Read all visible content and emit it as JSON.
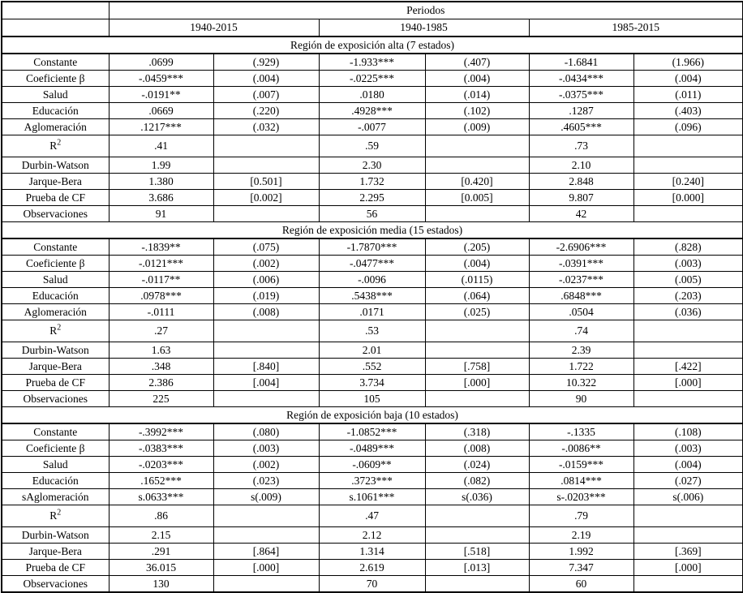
{
  "table": {
    "periods_label": "Periodos",
    "periods": [
      "1940-2015",
      "1940-1985",
      "1985-2015"
    ],
    "sections": [
      {
        "title": "Región de exposición alta (7 estados)",
        "rows": [
          {
            "label": "Constante",
            "cells": [
              ".0699",
              "(.929)",
              "-1.933***",
              "(.407)",
              "-1.6841",
              "(1.966)"
            ]
          },
          {
            "label": "Coeficiente β",
            "cells": [
              "-.0459***",
              "(.004)",
              "-.0225***",
              "(.004)",
              "-.0434***",
              "(.004)"
            ]
          },
          {
            "label": "Salud",
            "cells": [
              "-.0191**",
              "(.007)",
              ".0180",
              "(.014)",
              "-.0375***",
              "(.011)"
            ]
          },
          {
            "label": "Educación",
            "cells": [
              ".0669",
              "(.220)",
              ".4928***",
              "(.102)",
              ".1287",
              "(.403)"
            ]
          },
          {
            "label": "Aglomeración",
            "cells": [
              ".1217***",
              "(.032)",
              "-.0077",
              "(.009)",
              ".4605***",
              "(.096)"
            ]
          },
          {
            "label": "R²",
            "cells": [
              ".41",
              "",
              ".59",
              "",
              ".73",
              ""
            ]
          },
          {
            "label": "Durbin-Watson",
            "cells": [
              "1.99",
              "",
              "2.30",
              "",
              "2.10",
              ""
            ]
          },
          {
            "label": "Jarque-Bera",
            "cells": [
              "1.380",
              "[0.501]",
              "1.732",
              "[0.420]",
              "2.848",
              "[0.240]"
            ]
          },
          {
            "label": "Prueba de CF",
            "cells": [
              "3.686",
              "[0.002]",
              "2.295",
              "[0.005]",
              "9.807",
              "[0.000]"
            ]
          },
          {
            "label": "Observaciones",
            "cells": [
              "91",
              "",
              "56",
              "",
              "42",
              ""
            ]
          }
        ]
      },
      {
        "title": "Región de exposición media (15 estados)",
        "rows": [
          {
            "label": "Constante",
            "cells": [
              "-.1839**",
              "(.075)",
              "-1.7870***",
              "(.205)",
              "-2.6906***",
              "(.828)"
            ]
          },
          {
            "label": "Coeficiente β",
            "cells": [
              "-.0121***",
              "(.002)",
              "-.0477***",
              "(.004)",
              "-.0391***",
              "(.003)"
            ]
          },
          {
            "label": "Salud",
            "cells": [
              "-.0117**",
              "(.006)",
              "-.0096",
              "(.0115)",
              "-.0237***",
              "(.005)"
            ]
          },
          {
            "label": "Educación",
            "cells": [
              ".0978***",
              "(.019)",
              ".5438***",
              "(.064)",
              ".6848***",
              "(.203)"
            ]
          },
          {
            "label": "Aglomeración",
            "cells": [
              "-.0111",
              "(.008)",
              ".0171",
              "(.025)",
              ".0504",
              "(.036)"
            ]
          },
          {
            "label": "R²",
            "cells": [
              ".27",
              "",
              ".53",
              "",
              ".74",
              ""
            ]
          },
          {
            "label": "Durbin-Watson",
            "cells": [
              "1.63",
              "",
              "2.01",
              "",
              "2.39",
              ""
            ]
          },
          {
            "label": "Jarque-Bera",
            "cells": [
              ".348",
              "[.840]",
              ".552",
              "[.758]",
              "1.722",
              "[.422]"
            ]
          },
          {
            "label": "Prueba de CF",
            "cells": [
              "2.386",
              "[.004]",
              "3.734",
              "[.000]",
              "10.322",
              "[.000]"
            ]
          },
          {
            "label": "Observaciones",
            "cells": [
              "225",
              "",
              "105",
              "",
              "90",
              ""
            ]
          }
        ]
      },
      {
        "title": "Región de exposición baja (10 estados)",
        "rows": [
          {
            "label": "Constante",
            "cells": [
              "-.3992***",
              "(.080)",
              "-1.0852***",
              "(.318)",
              "-.1335",
              "(.108)"
            ]
          },
          {
            "label": "Coeficiente β",
            "cells": [
              "-.0383***",
              "(.003)",
              "-.0489***",
              "(.008)",
              "-.0086**",
              "(.003)"
            ]
          },
          {
            "label": "Salud",
            "cells": [
              "-.0203***",
              "(.002)",
              "-.0609**",
              "(.024)",
              "-.0159***",
              "(.004)"
            ]
          },
          {
            "label": "Educación",
            "cells": [
              ".1652***",
              "(.023)",
              ".3723***",
              "(.082)",
              ".0814***",
              "(.027)"
            ]
          },
          {
            "label": "sAglomeración",
            "cells": [
              "s.0633***",
              "s(.009)",
              "s.1061***",
              "s(.036)",
              "s-.0203***",
              "s(.006)"
            ]
          },
          {
            "label": "R²",
            "cells": [
              ".86",
              "",
              ".47",
              "",
              ".79",
              ""
            ]
          },
          {
            "label": "Durbin-Watson",
            "cells": [
              "2.15",
              "",
              "2.12",
              "",
              "2.19",
              ""
            ]
          },
          {
            "label": "Jarque-Bera",
            "cells": [
              ".291",
              "[.864]",
              "1.314",
              "[.518]",
              "1.992",
              "[.369]"
            ]
          },
          {
            "label": "Prueba de CF",
            "cells": [
              "36.015",
              "[.000]",
              "2.619",
              "[.013]",
              "7.347",
              "[.000]"
            ]
          },
          {
            "label": "Observaciones",
            "cells": [
              "130",
              "",
              "70",
              "",
              "60",
              ""
            ]
          }
        ]
      }
    ]
  }
}
